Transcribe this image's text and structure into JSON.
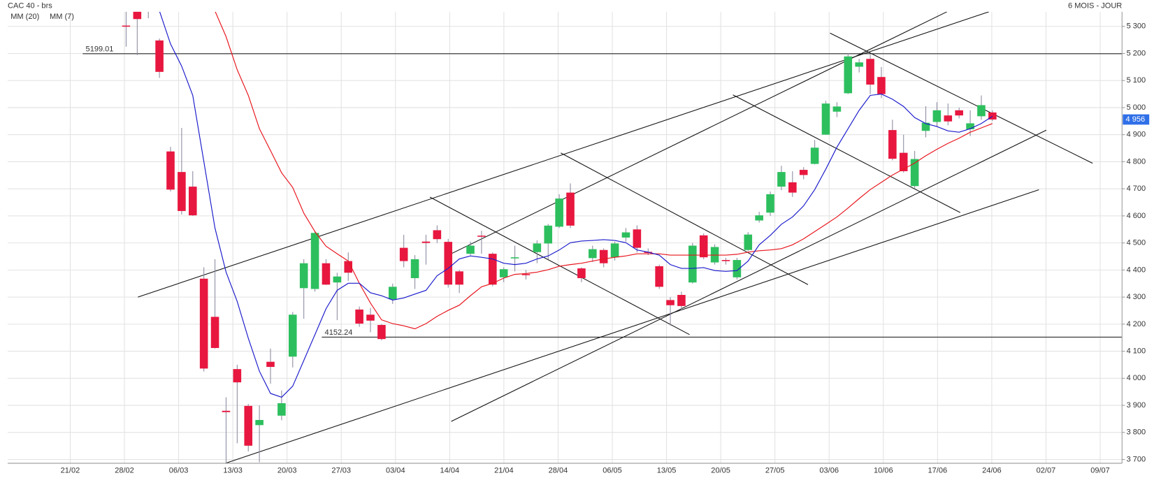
{
  "chart_data": {
    "type": "candlestick",
    "title": "CAC 40 - brs",
    "period": "6 MOIS - JOUR",
    "ylim": [
      3686,
      5354
    ],
    "yticks": [
      {
        "value": 3700,
        "label": "3 700"
      },
      {
        "value": 3800,
        "label": "3 800"
      },
      {
        "value": 3900,
        "label": "3 900"
      },
      {
        "value": 4000,
        "label": "4 000"
      },
      {
        "value": 4100,
        "label": "4 100"
      },
      {
        "value": 4200,
        "label": "4 200"
      },
      {
        "value": 4300,
        "label": "4 300"
      },
      {
        "value": 4400,
        "label": "4 400"
      },
      {
        "value": 4500,
        "label": "4 500"
      },
      {
        "value": 4600,
        "label": "4 600"
      },
      {
        "value": 4700,
        "label": "4 700"
      },
      {
        "value": 4800,
        "label": "4 800"
      },
      {
        "value": 4900,
        "label": "4 900"
      },
      {
        "value": 5000,
        "label": "5 000"
      },
      {
        "value": 5100,
        "label": "5 100"
      },
      {
        "value": 5200,
        "label": "5 200"
      },
      {
        "value": 5300,
        "label": "5 300"
      }
    ],
    "x_labels": [
      "21/02",
      "28/02",
      "06/03",
      "13/03",
      "20/03",
      "27/03",
      "03/04",
      "14/04",
      "21/04",
      "28/04",
      "06/05",
      "13/05",
      "20/05",
      "27/05",
      "03/06",
      "10/06",
      "17/06",
      "24/06",
      "02/07",
      "09/07"
    ],
    "grid": true,
    "up_color": "#2dbf5e",
    "down_color": "#e8173f",
    "open": [
      5303,
      5370,
      5360,
      5248,
      4838,
      4762,
      4708,
      4368,
      4227,
      3880,
      4034,
      3898,
      3827,
      4061,
      3862,
      4080,
      4333,
      4330,
      4425,
      4354,
      4433,
      4254,
      4235,
      4197,
      4292,
      4482,
      4370,
      4505,
      4547,
      4504,
      4395,
      4460,
      4527,
      4460,
      4373,
      4445,
      4385,
      4466,
      4498,
      4560,
      4686,
      4406,
      4444,
      4474,
      4447,
      4520,
      4550,
      4467,
      4414,
      4289,
      4308,
      4354,
      4528,
      4428,
      4437,
      4373,
      4474,
      4583,
      4612,
      4708,
      4724,
      4770,
      4792,
      4900,
      4985,
      5053,
      5151,
      5180,
      5113,
      4917,
      4833,
      4710,
      4914,
      4947,
      4971,
      4990,
      4920,
      4968,
      4982
    ],
    "high": [
      5371,
      5380,
      5370,
      5255,
      4855,
      4925,
      4765,
      4410,
      4440,
      3930,
      4050,
      3905,
      3900,
      4110,
      3955,
      4245,
      4440,
      4545,
      4440,
      4390,
      4465,
      4265,
      4260,
      4200,
      4350,
      4530,
      4455,
      4530,
      4565,
      4515,
      4400,
      4505,
      4545,
      4465,
      4410,
      4490,
      4400,
      4510,
      4570,
      4680,
      4720,
      4410,
      4490,
      4480,
      4505,
      4555,
      4565,
      4480,
      4420,
      4300,
      4320,
      4500,
      4535,
      4495,
      4445,
      4445,
      4540,
      4615,
      4690,
      4785,
      4765,
      4780,
      4880,
      5025,
      5020,
      5200,
      5180,
      5195,
      5150,
      4955,
      4900,
      4840,
      5005,
      5020,
      5015,
      5000,
      4990,
      5045,
      4990
    ],
    "low": [
      5225,
      5194,
      5330,
      5110,
      4690,
      4605,
      4600,
      4025,
      4110,
      3680,
      3760,
      3730,
      3690,
      3980,
      3845,
      4040,
      4220,
      4320,
      4345,
      4215,
      4360,
      4190,
      4170,
      4140,
      4275,
      4410,
      4330,
      4420,
      4500,
      4335,
      4315,
      4455,
      4460,
      4340,
      4355,
      4395,
      4365,
      4425,
      4440,
      4555,
      4555,
      4355,
      4430,
      4410,
      4435,
      4505,
      4465,
      4455,
      4330,
      4195,
      4250,
      4350,
      4440,
      4420,
      4420,
      4365,
      4470,
      4575,
      4600,
      4695,
      4670,
      4735,
      4790,
      4900,
      4965,
      5050,
      5130,
      5050,
      5035,
      4805,
      4760,
      4700,
      4890,
      4930,
      4935,
      4960,
      4895,
      4955,
      4950
    ],
    "close": [
      5300,
      5327,
      5355,
      5132,
      4697,
      4618,
      4602,
      4036,
      4112,
      3875,
      3985,
      3751,
      3846,
      4042,
      3908,
      4235,
      4425,
      4537,
      4346,
      4376,
      4390,
      4202,
      4213,
      4145,
      4338,
      4433,
      4440,
      4500,
      4514,
      4346,
      4346,
      4490,
      4523,
      4346,
      4403,
      4447,
      4383,
      4498,
      4564,
      4664,
      4564,
      4370,
      4477,
      4425,
      4498,
      4539,
      4482,
      4465,
      4338,
      4270,
      4267,
      4490,
      4447,
      4485,
      4435,
      4437,
      4531,
      4602,
      4680,
      4762,
      4686,
      4751,
      4852,
      5015,
      5004,
      5189,
      5167,
      5085,
      5050,
      4811,
      4765,
      4810,
      4944,
      4990,
      4949,
      4971,
      4942,
      5009,
      4956
    ],
    "series": [
      {
        "name": "MM (20)",
        "color": "#e8141c",
        "values": [
          null,
          null,
          null,
          null,
          null,
          null,
          null,
          null,
          5357,
          5262,
          5140,
          5045,
          4922,
          4841,
          4759,
          4705,
          4610,
          4542,
          4488,
          4460,
          4433,
          4351,
          4278,
          4216,
          4202,
          4194,
          4183,
          4202,
          4229,
          4251,
          4270,
          4305,
          4338,
          4351,
          4370,
          4384,
          4387,
          4392,
          4401,
          4414,
          4420,
          4425,
          4433,
          4441,
          4447,
          4452,
          4460,
          4460,
          4460,
          4455,
          4455,
          4455,
          4455,
          4455,
          4455,
          4458,
          4466,
          4471,
          4474,
          4479,
          4493,
          4515,
          4542,
          4569,
          4596,
          4629,
          4664,
          4697,
          4724,
          4751,
          4773,
          4795,
          4822,
          4846,
          4868,
          4887,
          4909,
          4925,
          4941
        ]
      },
      {
        "name": "MM (7)",
        "color": "#1a1acc",
        "values": [
          null,
          null,
          null,
          5357,
          5235,
          5153,
          5045,
          4800,
          4555,
          4392,
          4284,
          4148,
          4026,
          3944,
          3930,
          3971,
          4066,
          4161,
          4257,
          4325,
          4351,
          4351,
          4316,
          4305,
          4289,
          4297,
          4311,
          4325,
          4379,
          4406,
          4441,
          4452,
          4447,
          4441,
          4425,
          4420,
          4425,
          4441,
          4452,
          4474,
          4501,
          4507,
          4509,
          4512,
          4509,
          4501,
          4474,
          4466,
          4455,
          4420,
          4406,
          4406,
          4409,
          4398,
          4395,
          4398,
          4433,
          4493,
          4528,
          4569,
          4596,
          4637,
          4697,
          4773,
          4854,
          4922,
          4990,
          5045,
          5050,
          5031,
          5004,
          4963,
          4941,
          4930,
          4914,
          4909,
          4922,
          4941,
          4968
        ]
      }
    ],
    "levels": [
      5199.01,
      4152.24
    ],
    "last_price": {
      "value": 4956,
      "label": "4 956"
    }
  }
}
